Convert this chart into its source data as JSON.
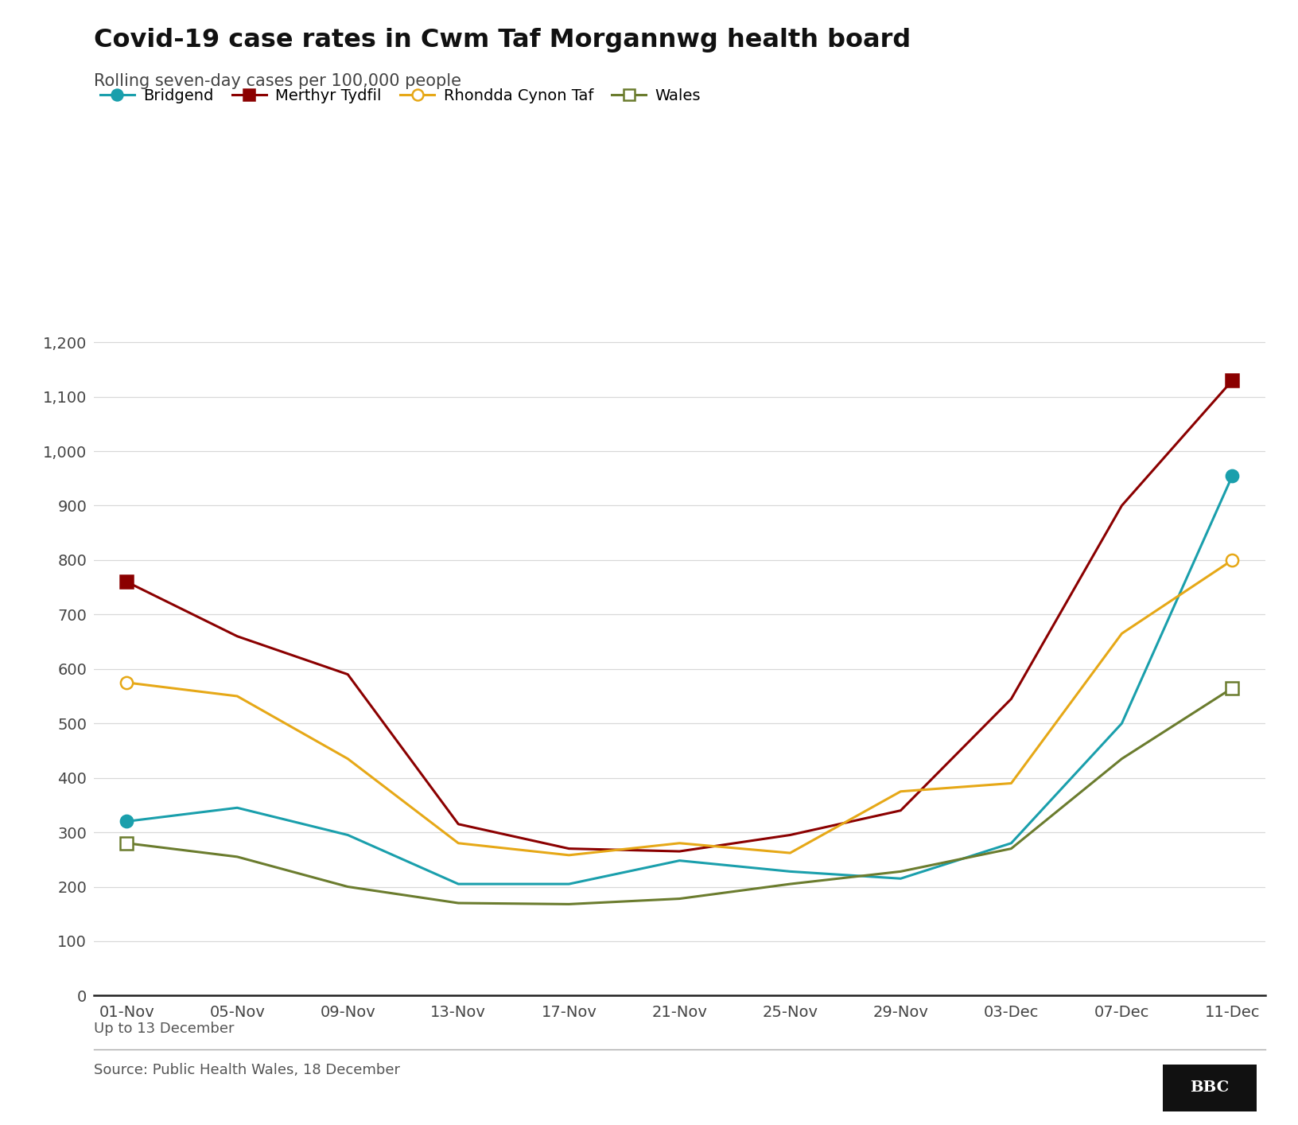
{
  "title": "Covid-19 case rates in Cwm Taf Morgannwg health board",
  "subtitle": "Rolling seven-day cases per 100,000 people",
  "note": "Up to 13 December",
  "source": "Source: Public Health Wales, 18 December",
  "x_labels": [
    "01-Nov",
    "05-Nov",
    "09-Nov",
    "13-Nov",
    "17-Nov",
    "21-Nov",
    "25-Nov",
    "29-Nov",
    "03-Dec",
    "07-Dec",
    "11-Dec"
  ],
  "series": {
    "Bridgend": {
      "color": "#1a9fac",
      "marker": "o",
      "marker_face": "filled",
      "values": [
        320,
        345,
        295,
        205,
        205,
        248,
        228,
        215,
        280,
        500,
        955
      ]
    },
    "Merthyr Tydfil": {
      "color": "#8b0000",
      "marker": "s",
      "marker_face": "filled",
      "values": [
        760,
        660,
        590,
        315,
        270,
        265,
        295,
        340,
        545,
        900,
        1130
      ]
    },
    "Rhondda Cynon Taf": {
      "color": "#e6a817",
      "marker": "o",
      "marker_face": "open",
      "values": [
        575,
        550,
        435,
        280,
        258,
        280,
        262,
        375,
        390,
        665,
        800
      ]
    },
    "Wales": {
      "color": "#6b7c2e",
      "marker": "s",
      "marker_face": "open",
      "values": [
        280,
        255,
        200,
        170,
        168,
        178,
        205,
        228,
        270,
        435,
        565
      ]
    }
  },
  "ylim": [
    0,
    1250
  ],
  "yticks": [
    0,
    100,
    200,
    300,
    400,
    500,
    600,
    700,
    800,
    900,
    1000,
    1100,
    1200
  ],
  "bg_color": "#ffffff",
  "title_fontsize": 23,
  "subtitle_fontsize": 15,
  "legend_fontsize": 14,
  "tick_fontsize": 14,
  "note_fontsize": 13,
  "source_fontsize": 13
}
